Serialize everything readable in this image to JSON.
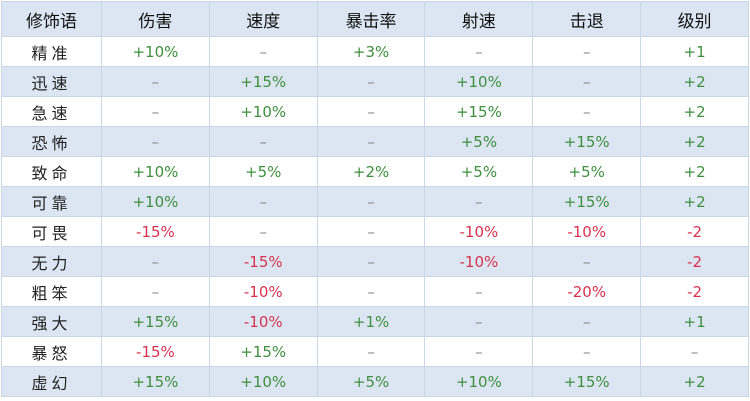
{
  "table": {
    "header": [
      "修饰语",
      "伤害",
      "速度",
      "暴击率",
      "射速",
      "击退",
      "级别"
    ],
    "rows": [
      [
        "精准",
        "+10%",
        "–",
        "+3%",
        "–",
        "–",
        "+1"
      ],
      [
        "迅速",
        "–",
        "+15%",
        "–",
        "+10%",
        "–",
        "+2"
      ],
      [
        "急速",
        "–",
        "+10%",
        "–",
        "+15%",
        "–",
        "+2"
      ],
      [
        "恐怖",
        "–",
        "–",
        "–",
        "+5%",
        "+15%",
        "+2"
      ],
      [
        "致命",
        "+10%",
        "+5%",
        "+2%",
        "+5%",
        "+5%",
        "+2"
      ],
      [
        "可靠",
        "+10%",
        "–",
        "–",
        "–",
        "+15%",
        "+2"
      ],
      [
        "可畏",
        "-15%",
        "–",
        "–",
        "-10%",
        "-10%",
        "-2"
      ],
      [
        "无力",
        "–",
        "-15%",
        "–",
        "-10%",
        "–",
        "-2"
      ],
      [
        "粗笨",
        "–",
        "-10%",
        "–",
        "–",
        "-20%",
        "-2"
      ],
      [
        "强大",
        "+15%",
        "-10%",
        "+1%",
        "–",
        "–",
        "+1"
      ],
      [
        "暴怒",
        "-15%",
        "+15%",
        "–",
        "–",
        "–",
        "–"
      ],
      [
        "虚幻",
        "+15%",
        "+10%",
        "+5%",
        "+10%",
        "+15%",
        "+2"
      ]
    ]
  }
}
